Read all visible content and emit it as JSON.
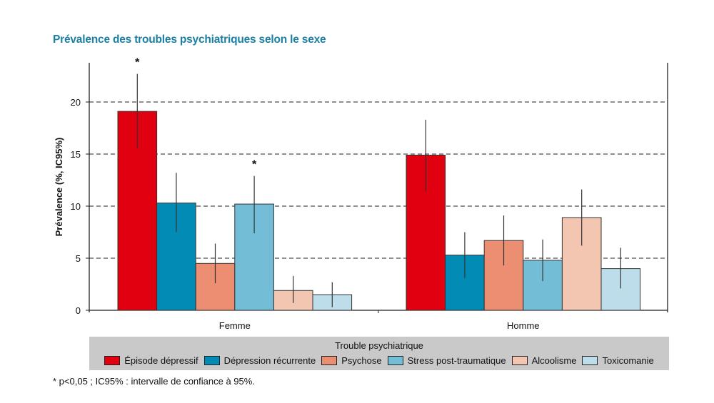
{
  "chart_data": {
    "type": "bar",
    "title": "Prévalence des troubles psychiatriques selon le sexe",
    "xlabel": "",
    "ylabel": "Prévalence (%, IC95%)",
    "ylim": [
      0,
      24
    ],
    "yticks": [
      "0",
      "5",
      "10",
      "15",
      "20"
    ],
    "grid": "horizontal dashed",
    "categories": [
      "Femme",
      "Homme"
    ],
    "legend_title": "Trouble psychiatrique",
    "legend_placement": "bottom",
    "series": [
      {
        "name": "Épisode dépressif",
        "color": "#e0000f",
        "values": [
          19.1,
          14.9
        ],
        "ci_low": [
          15.5,
          11.4
        ],
        "ci_high": [
          22.7,
          18.3
        ],
        "significant": [
          true,
          false
        ]
      },
      {
        "name": "Dépression récurrente",
        "color": "#018bb5",
        "values": [
          10.3,
          5.3
        ],
        "ci_low": [
          7.5,
          3.1
        ],
        "ci_high": [
          13.2,
          7.5
        ],
        "significant": [
          false,
          false
        ]
      },
      {
        "name": "Psychose",
        "color": "#ec8e71",
        "values": [
          4.5,
          6.7
        ],
        "ci_low": [
          2.6,
          4.3
        ],
        "ci_high": [
          6.4,
          9.1
        ],
        "significant": [
          false,
          false
        ]
      },
      {
        "name": "Stress post-traumatique",
        "color": "#74bdd7",
        "values": [
          10.2,
          4.8
        ],
        "ci_low": [
          7.4,
          2.8
        ],
        "ci_high": [
          12.9,
          6.8
        ],
        "significant": [
          true,
          false
        ]
      },
      {
        "name": "Alcoolisme",
        "color": "#f2c6b1",
        "values": [
          1.9,
          8.9
        ],
        "ci_low": [
          0.7,
          6.2
        ],
        "ci_high": [
          3.3,
          11.6
        ],
        "significant": [
          false,
          false
        ]
      },
      {
        "name": "Toxicomanie",
        "color": "#bcdde9",
        "values": [
          1.5,
          4.0
        ],
        "ci_low": [
          0.3,
          2.1
        ],
        "ci_high": [
          2.7,
          6.0
        ],
        "significant": [
          false,
          false
        ]
      }
    ],
    "significance_marker": "*",
    "footnote": "* p<0,05 ; IC95% : intervalle de confiance à 95%."
  }
}
